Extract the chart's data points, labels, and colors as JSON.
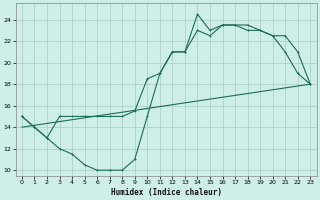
{
  "xlabel": "Humidex (Indice chaleur)",
  "bg_color": "#ceeee8",
  "line_color": "#1a6b5a",
  "grid_color": "#b0d0cb",
  "xlim": [
    -0.5,
    23.5
  ],
  "ylim": [
    9.5,
    25.5
  ],
  "xticks": [
    0,
    1,
    2,
    3,
    4,
    5,
    6,
    7,
    8,
    9,
    10,
    11,
    12,
    13,
    14,
    15,
    16,
    17,
    18,
    19,
    20,
    21,
    22,
    23
  ],
  "yticks": [
    10,
    12,
    14,
    16,
    18,
    20,
    22,
    24
  ],
  "line1_x": [
    0,
    1,
    2,
    3,
    4,
    5,
    6,
    7,
    8,
    9,
    10,
    11,
    12,
    13,
    14,
    15,
    16,
    17,
    18,
    19,
    20,
    21,
    22,
    23
  ],
  "line1_y": [
    15,
    14,
    13,
    12,
    11.5,
    10.5,
    10,
    10,
    10,
    11,
    15,
    19,
    21,
    21,
    24.5,
    23,
    23.5,
    23.5,
    23.5,
    23,
    22.5,
    21,
    19,
    18
  ],
  "line2_x": [
    0,
    1,
    2,
    3,
    4,
    5,
    6,
    7,
    8,
    9,
    10,
    11,
    12,
    13,
    14,
    15,
    16,
    17,
    18,
    19,
    20,
    21,
    22,
    23
  ],
  "line2_y": [
    15,
    14,
    13,
    15,
    15,
    15,
    15,
    15,
    15,
    15.5,
    18.5,
    19,
    21,
    21,
    23,
    22.5,
    23.5,
    23.5,
    23,
    23,
    22.5,
    22.5,
    21,
    18
  ],
  "line3_x": [
    0,
    23
  ],
  "line3_y": [
    14,
    18
  ]
}
